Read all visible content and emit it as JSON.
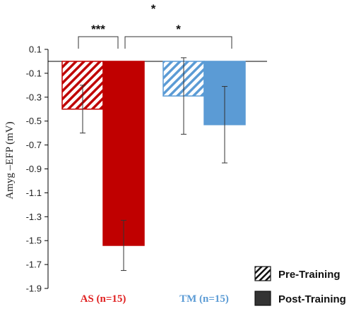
{
  "chart_data": {
    "type": "bar",
    "ylabel": "Amyg –EFP (mV)",
    "ylim": [
      -1.9,
      0.1
    ],
    "yticks": [
      "0.1",
      "-0.1",
      "-0.3",
      "-0.5",
      "-0.7",
      "-0.9",
      "-1.1",
      "-1.3",
      "-1.5",
      "-1.7",
      "-1.9"
    ],
    "groups": [
      {
        "label": "AS (n=15)",
        "color": "#c00000",
        "label_color": "#e02020"
      },
      {
        "label": "TM (n=15)",
        "color": "#5b9bd5",
        "label_color": "#5b9bd5"
      }
    ],
    "series": [
      {
        "name": "Pre-Training",
        "pattern": "hatched",
        "values": [
          -0.4,
          -0.29
        ],
        "errors": [
          0.2,
          0.32
        ]
      },
      {
        "name": "Post-Training",
        "pattern": "solid",
        "values": [
          -1.54,
          -0.53
        ],
        "errors": [
          0.21,
          0.32
        ]
      }
    ],
    "significance": [
      {
        "label": "***",
        "between": "AS pre vs AS post"
      },
      {
        "label": "*",
        "between": "AS post vs TM post"
      },
      {
        "label": "*",
        "between": "overall"
      }
    ],
    "legend": {
      "position": "bottom-right",
      "items": [
        "Pre-Training",
        "Post-Training"
      ]
    }
  }
}
